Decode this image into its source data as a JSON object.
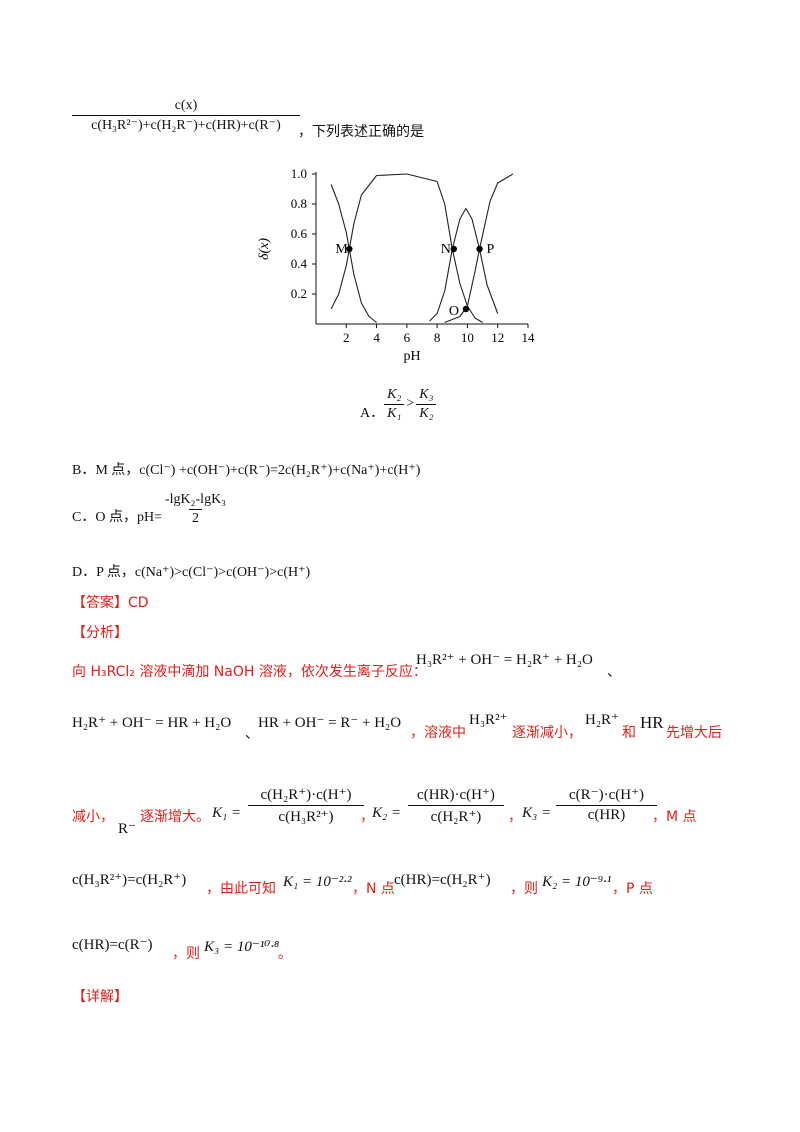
{
  "header": {
    "fraction_num": "c(x)",
    "fraction_den": "c(H₃R²⁻)+c(H₂R⁻)+c(HR)+c(R⁻)",
    "tail": "，下列表述正确的是"
  },
  "chart_data": {
    "type": "line",
    "ylabel": "δ(x)",
    "xlabel": "pH",
    "xlim": [
      0,
      14
    ],
    "ylim": [
      0,
      1.0
    ],
    "xticks": [
      "2",
      "4",
      "6",
      "8",
      "10",
      "12",
      "14"
    ],
    "yticks": [
      "0.2",
      "0.4",
      "0.6",
      "0.8",
      "1.0"
    ],
    "series": [
      {
        "x": [
          1,
          1.5,
          2,
          2.2,
          2.5,
          3,
          3.5,
          4
        ],
        "values": [
          0.93,
          0.8,
          0.61,
          0.5,
          0.33,
          0.14,
          0.05,
          0.01
        ]
      },
      {
        "x": [
          1,
          1.5,
          2,
          2.2,
          2.5,
          3,
          4,
          6,
          8,
          8.5,
          9,
          9.5,
          10,
          10.5,
          11
        ],
        "values": [
          0.1,
          0.2,
          0.39,
          0.5,
          0.67,
          0.86,
          0.99,
          1.0,
          0.95,
          0.8,
          0.5,
          0.27,
          0.12,
          0.04,
          0.01
        ]
      },
      {
        "x": [
          7.5,
          8,
          8.5,
          9,
          9.5,
          9.9,
          10.3,
          10.8,
          11.3,
          12
        ],
        "values": [
          0.02,
          0.07,
          0.22,
          0.5,
          0.7,
          0.77,
          0.7,
          0.5,
          0.26,
          0.07
        ]
      },
      {
        "x": [
          8.5,
          9.5,
          10,
          10.5,
          10.8,
          11.5,
          12,
          13
        ],
        "values": [
          0.01,
          0.05,
          0.12,
          0.35,
          0.5,
          0.82,
          0.94,
          1.0
        ]
      }
    ],
    "points": [
      {
        "label": "M",
        "x": 2.2,
        "y": 0.5
      },
      {
        "label": "N",
        "x": 9.1,
        "y": 0.5
      },
      {
        "label": "P",
        "x": 10.8,
        "y": 0.5
      },
      {
        "label": "O",
        "x": 9.9,
        "y": 0.1
      }
    ]
  },
  "options": {
    "a_label": "A．",
    "a_k2": "K₂",
    "a_k1": "K₁",
    "a_k3": "K₃",
    "a_k2b": "K₂",
    "a_gt": ">",
    "b": "B．M 点，c(Cl⁻) +c(OH⁻)+c(R⁻)=2c(H₂R⁺)+c(Na⁺)+c(H⁺)",
    "c_label": "C．O 点，pH=",
    "c_num": "-lgK₂-lgK₃",
    "c_den": "2",
    "d": "D．P 点，c(Na⁺)>c(Cl⁻)>c(OH⁻)>c(H⁺)"
  },
  "answer": {
    "answer_tag": "【答案】",
    "answer_value": "CD",
    "analysis_tag": "【分析】",
    "detail_tag": "【详解】"
  },
  "analysis": {
    "line1_text": "向 H₃RCl₂ 溶液中滴加 NaOH 溶液，依次发生离子反应：",
    "line1_eq": "H₃R²⁺ + OH⁻ = H₂R⁺ + H₂O",
    "line1_end": "、",
    "line2_eq1": "H₂R⁺ + OH⁻ = HR + H₂O",
    "line2_sep": "、",
    "line2_eq2": "HR + OH⁻ = R⁻ + H₂O",
    "line2_text1": "，溶液中",
    "line2_sp1": "H₃R²⁺",
    "line2_text2": "逐渐减小，",
    "line2_sp2": "H₂R⁺",
    "line2_text3": "和",
    "line2_sp3": "HR",
    "line2_text4": "先增大后",
    "line3_text1": "减小，",
    "line3_sp": "R⁻",
    "line3_text2": "逐渐增大。",
    "k1_lhs": "K₁ =",
    "k1_num": "c(H₂R⁺)·c(H⁺)",
    "k1_den": "c(H₃R²⁺)",
    "k2_lhs": "K₂ =",
    "k2_num": "c(HR)·c(H⁺)",
    "k2_den": "c(H₂R⁺)",
    "k3_lhs": "K₃ =",
    "k3_num": "c(R⁻)·c(H⁺)",
    "k3_den": "c(HR)",
    "comma": "，",
    "m_point": "M 点",
    "line4_eq1": "c(H₃R²⁺)=c(H₂R⁺)",
    "line4_text1": "，由此可知",
    "line4_k1": "K₁ = 10⁻²·²",
    "line4_text2": "，N 点",
    "line4_eq2": "c(HR)=c(H₂R⁺)",
    "line4_text3": "，则",
    "line4_k2": "K₂ = 10⁻⁹·¹",
    "line4_text4": "，P 点",
    "line5_eq": "c(HR)=c(R⁻)",
    "line5_text1": "，则",
    "line5_k3": "K₃ = 10⁻¹⁰·⁸",
    "line5_end": "。"
  }
}
